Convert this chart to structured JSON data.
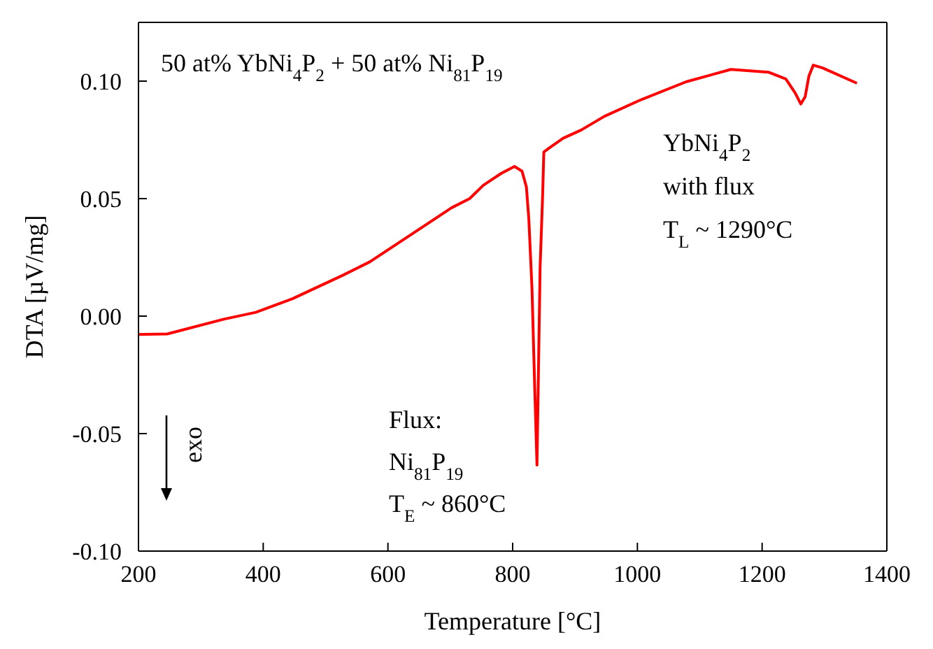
{
  "chart_data": {
    "type": "line",
    "xlabel": "Temperature [°C]",
    "ylabel": "DTA  [µV/mg]",
    "x": [
      200,
      246,
      337,
      388,
      447,
      527,
      571,
      644,
      702,
      731,
      753,
      782,
      803,
      815,
      822,
      826,
      831,
      835,
      839,
      844,
      848,
      850,
      859,
      881,
      910,
      947,
      1006,
      1078,
      1150,
      1210,
      1238,
      1253,
      1262,
      1269,
      1275,
      1282,
      1297,
      1352
    ],
    "series": [
      {
        "color": "#ff0000",
        "values": [
          -0.0078,
          -0.0076,
          -0.0013,
          0.0016,
          0.0074,
          0.0173,
          0.0231,
          0.0359,
          0.0461,
          0.05,
          0.0557,
          0.0608,
          0.0637,
          0.0617,
          0.055,
          0.041,
          0.0117,
          -0.027,
          -0.0634,
          0.0205,
          0.051,
          0.0698,
          0.0716,
          0.0757,
          0.0792,
          0.085,
          0.0921,
          0.0997,
          0.105,
          0.1038,
          0.1009,
          0.095,
          0.0903,
          0.0933,
          0.1021,
          0.1068,
          0.1056,
          0.0991
        ]
      }
    ],
    "xlim": [
      200,
      1400
    ],
    "xticks": [
      200,
      400,
      600,
      800,
      1000,
      1200,
      1400
    ],
    "ylim": [
      -0.1,
      0.125
    ],
    "yticks": [
      {
        "value": -0.1,
        "label": "-0.10"
      },
      {
        "value": -0.05,
        "label": "-0.05"
      },
      {
        "value": 0,
        "label": "0.00"
      },
      {
        "value": 0.05,
        "label": "0.05"
      },
      {
        "value": 0.1,
        "label": "0.10"
      }
    ],
    "marker": "none",
    "annotations": [
      "50 at% YbNi$_{4}$P$_{2}$ + 50 at% Ni$_{81}$P$_{19}$",
      "YbNi$_{4}$P$_{2}$\nwith flux\nT$_{L}$ ~ 1290°C",
      "Flux:\nNi$_{81}$P$_{19}$\nT$_{E}$ ~ 860°C",
      "exo"
    ]
  }
}
